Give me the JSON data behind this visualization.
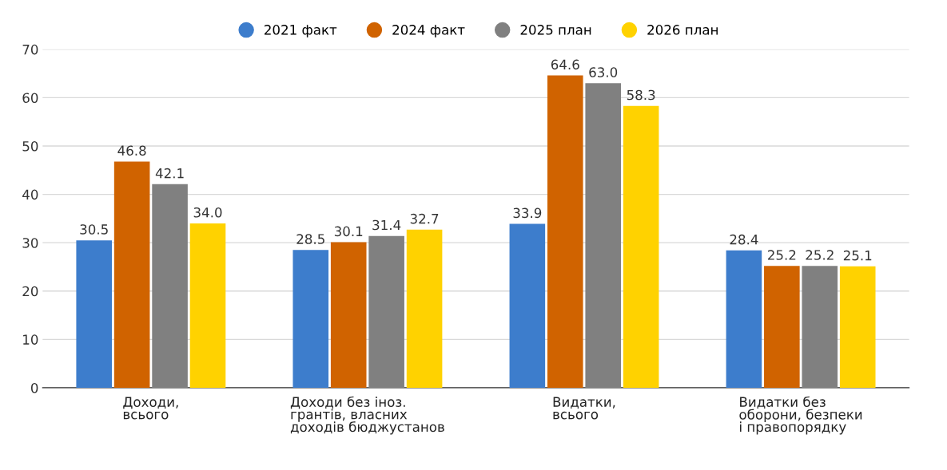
{
  "chart_data": {
    "type": "bar",
    "categories": [
      "Доходи,\nвсього",
      "Доходи без іноз.\nгрантів, власних\nдоходів бюджустанов",
      "Видатки,\nвсього",
      "Видатки без\nоборони, безпеки\nі правопорядку"
    ],
    "series": [
      {
        "name": "2021 факт",
        "color": "#3d7dcc",
        "values": [
          30.5,
          28.5,
          33.9,
          28.4
        ],
        "value_labels": [
          "30.5",
          "28.5",
          "33.9",
          "28.4"
        ]
      },
      {
        "name": "2024 факт",
        "color": "#d06300",
        "values": [
          46.8,
          30.1,
          64.6,
          25.2
        ],
        "value_labels": [
          "46.8",
          "30.1",
          "64.6",
          "25.2"
        ]
      },
      {
        "name": "2025 план",
        "color": "#808080",
        "values": [
          42.1,
          31.4,
          63.0,
          25.2
        ],
        "value_labels": [
          "42.1",
          "31.4",
          "63.0",
          "25.2"
        ]
      },
      {
        "name": "2026 план",
        "color": "#ffd200",
        "values": [
          34.0,
          32.7,
          58.3,
          25.1
        ],
        "value_labels": [
          "34.0",
          "32.7",
          "58.3",
          "25.1"
        ]
      }
    ],
    "ylim": [
      0,
      70
    ],
    "yticks": [
      0,
      10,
      20,
      30,
      40,
      50,
      60,
      70
    ],
    "grid": "y",
    "legend": "top"
  }
}
